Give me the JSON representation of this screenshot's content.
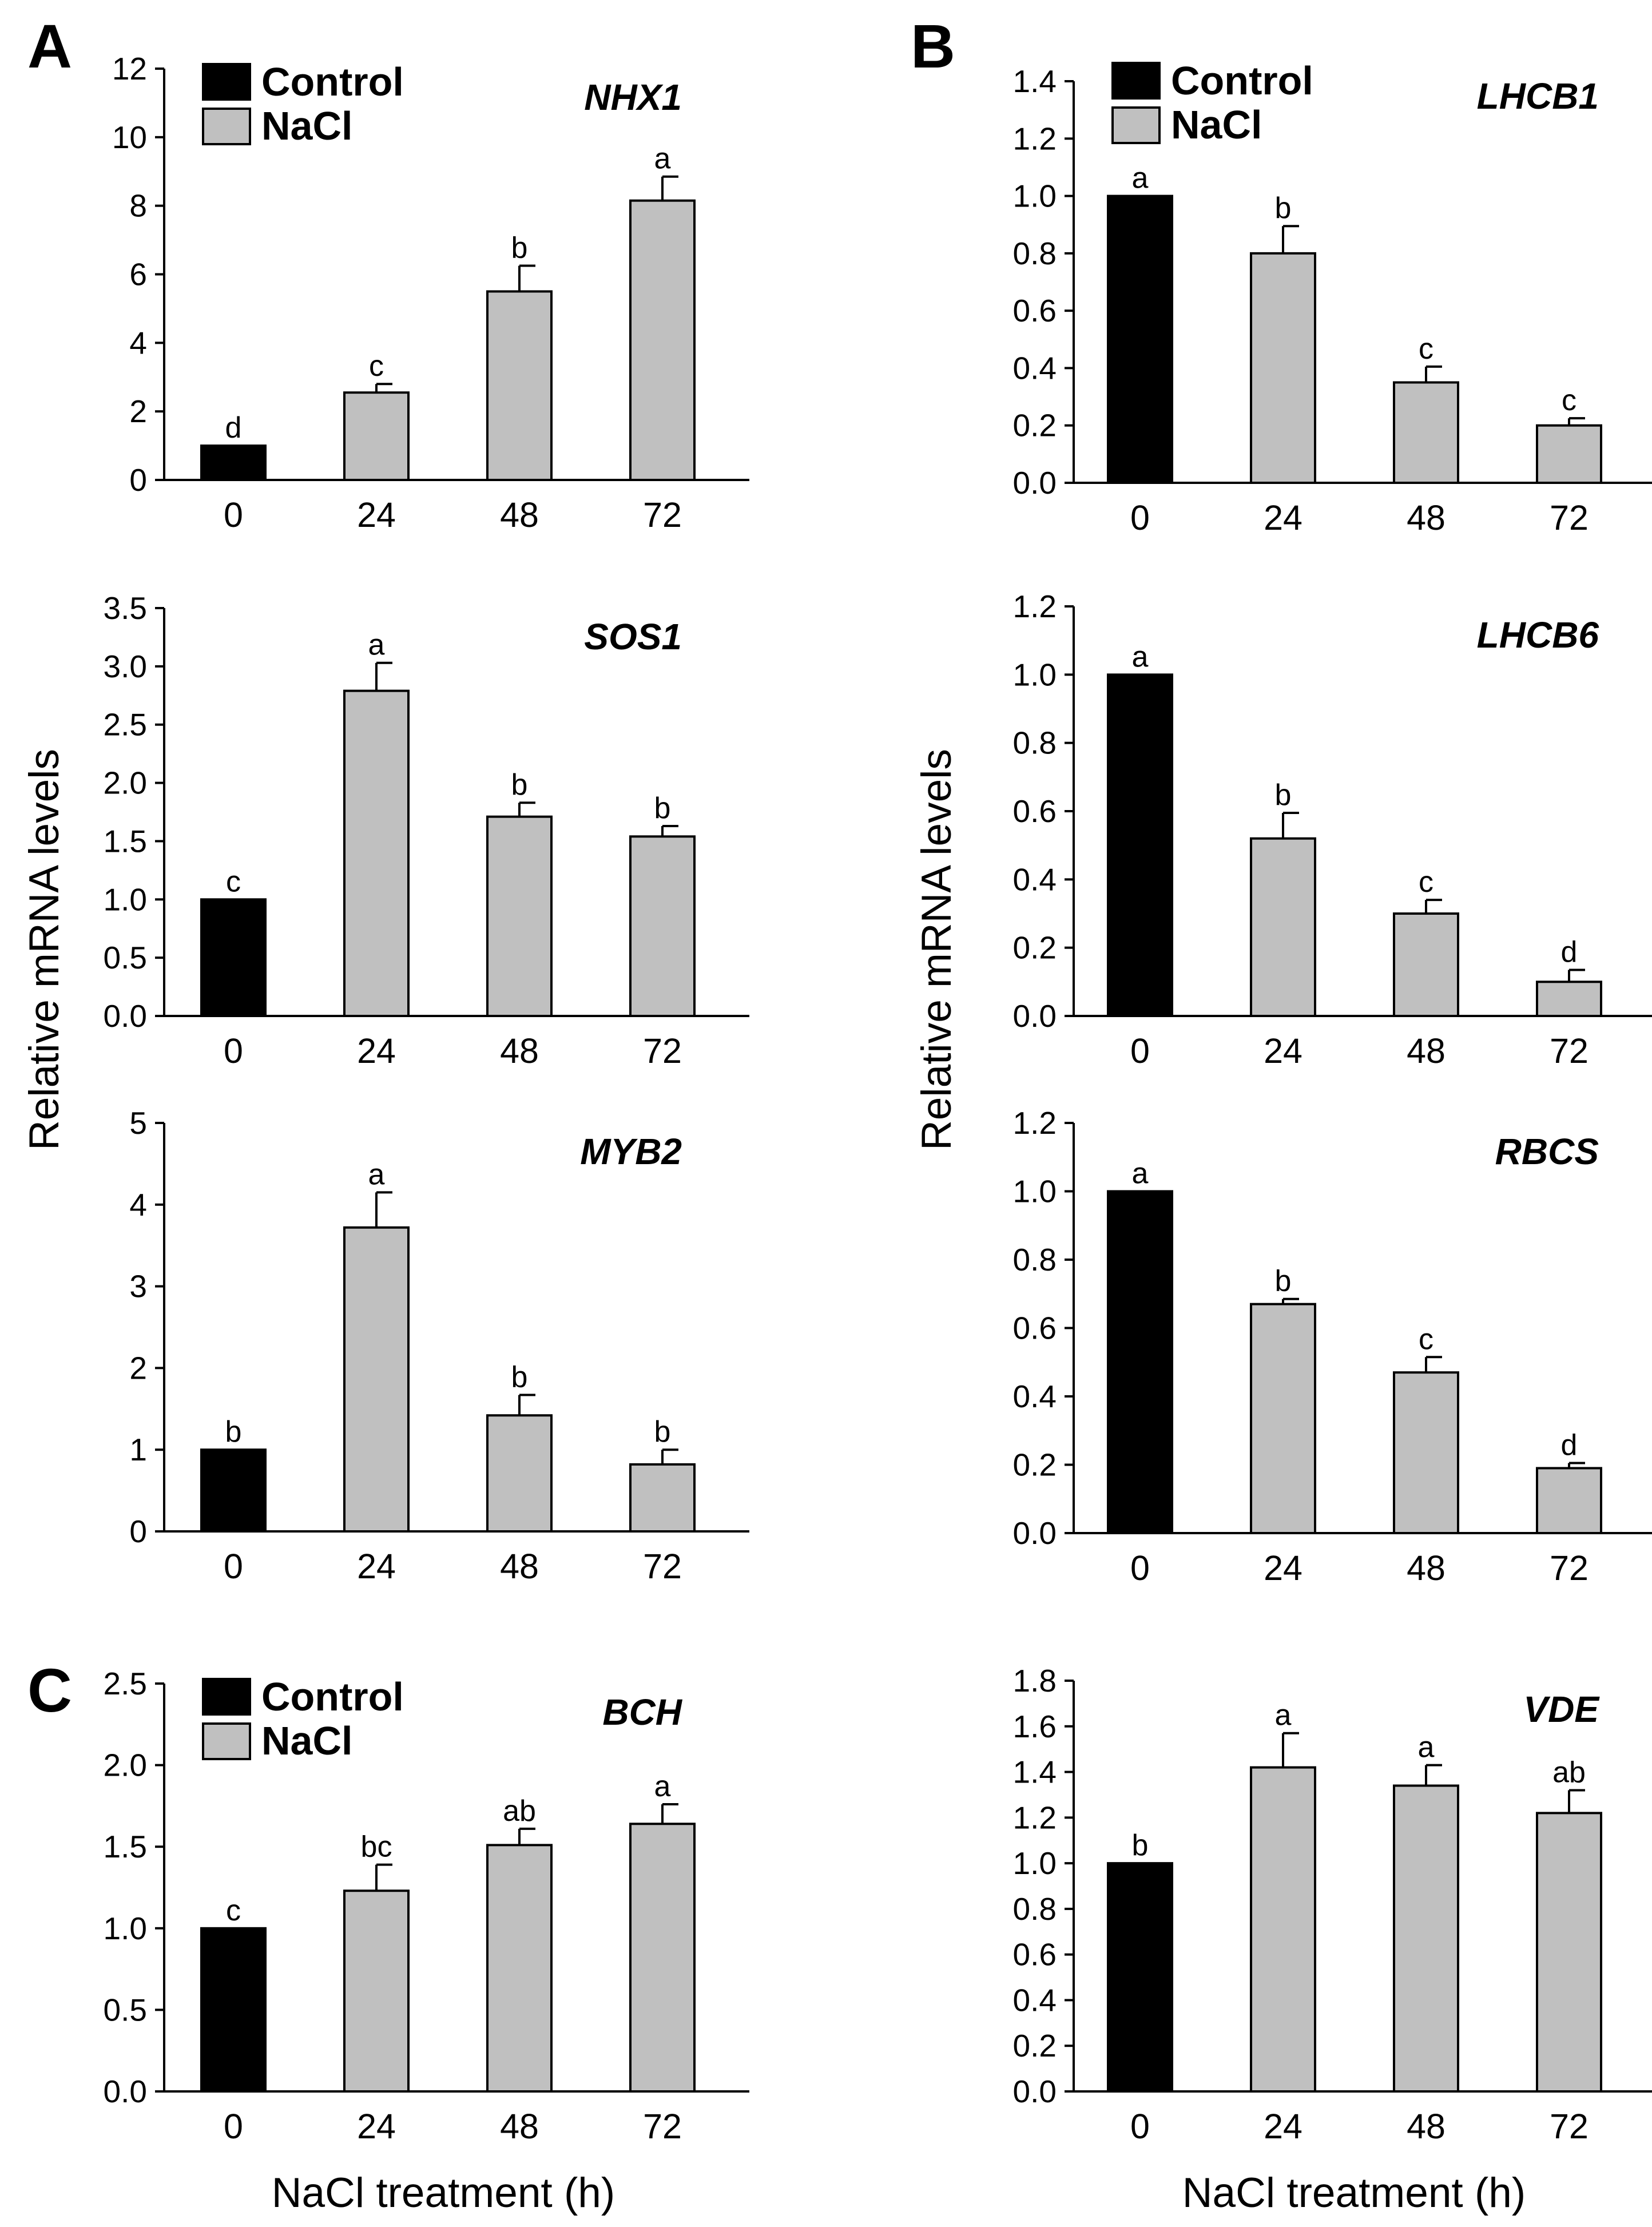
{
  "figure": {
    "panel_letters": [
      "A",
      "B",
      "C"
    ],
    "ylabel_left": "Relative mRNA levels",
    "ylabel_right": "Relative mRNA levels",
    "xlabel_left": "NaCl treatment (h)",
    "xlabel_right": "NaCl treatment (h)"
  },
  "legend": {
    "control_label": "Control",
    "nacl_label": "NaCl",
    "control_color": "#000000",
    "nacl_color": "#c0c0c0"
  },
  "chart_data": [
    {
      "type": "bar",
      "title": "NHX1",
      "panel": "A",
      "categories": [
        "0",
        "24",
        "48",
        "72"
      ],
      "values": [
        1.0,
        2.55,
        5.5,
        8.15
      ],
      "errors": [
        0,
        0.25,
        0.75,
        0.7
      ],
      "letters": [
        "d",
        "c",
        "b",
        "a"
      ],
      "groups": [
        "Control",
        "NaCl",
        "NaCl",
        "NaCl"
      ],
      "ylim": [
        0,
        12
      ],
      "yticks": [
        "0",
        "2",
        "4",
        "6",
        "8",
        "10",
        "12"
      ],
      "legend": true
    },
    {
      "type": "bar",
      "title": "LHCB1",
      "panel": "B",
      "categories": [
        "0",
        "24",
        "48",
        "72"
      ],
      "values": [
        1.0,
        0.8,
        0.35,
        0.2
      ],
      "errors": [
        0,
        0.095,
        0.055,
        0.025
      ],
      "letters": [
        "a",
        "b",
        "c",
        "c"
      ],
      "groups": [
        "Control",
        "NaCl",
        "NaCl",
        "NaCl"
      ],
      "ylim": [
        0,
        1.4
      ],
      "yticks": [
        "0.0",
        "0.2",
        "0.4",
        "0.6",
        "0.8",
        "1.0",
        "1.2",
        "1.4"
      ],
      "legend": true
    },
    {
      "type": "bar",
      "title": "SOS1",
      "categories": [
        "0",
        "24",
        "48",
        "72"
      ],
      "values": [
        1.0,
        2.79,
        1.71,
        1.54
      ],
      "errors": [
        0,
        0.24,
        0.12,
        0.09
      ],
      "letters": [
        "c",
        "a",
        "b",
        "b"
      ],
      "groups": [
        "Control",
        "NaCl",
        "NaCl",
        "NaCl"
      ],
      "ylim": [
        0,
        3.5
      ],
      "yticks": [
        "0.0",
        "0.5",
        "1.0",
        "1.5",
        "2.0",
        "2.5",
        "3.0",
        "3.5"
      ],
      "legend": false
    },
    {
      "type": "bar",
      "title": "LHCB6",
      "categories": [
        "0",
        "24",
        "48",
        "72"
      ],
      "values": [
        1.0,
        0.52,
        0.3,
        0.1
      ],
      "errors": [
        0,
        0.075,
        0.04,
        0.035
      ],
      "letters": [
        "a",
        "b",
        "c",
        "d"
      ],
      "groups": [
        "Control",
        "NaCl",
        "NaCl",
        "NaCl"
      ],
      "ylim": [
        0,
        1.2
      ],
      "yticks": [
        "0.0",
        "0.2",
        "0.4",
        "0.6",
        "0.8",
        "1.0",
        "1.2"
      ],
      "legend": false
    },
    {
      "type": "bar",
      "title": "MYB2",
      "categories": [
        "0",
        "24",
        "48",
        "72"
      ],
      "values": [
        1.0,
        3.72,
        1.42,
        0.82
      ],
      "errors": [
        0,
        0.43,
        0.25,
        0.18
      ],
      "letters": [
        "b",
        "a",
        "b",
        "b"
      ],
      "groups": [
        "Control",
        "NaCl",
        "NaCl",
        "NaCl"
      ],
      "ylim": [
        0,
        5
      ],
      "yticks": [
        "0",
        "1",
        "2",
        "3",
        "4",
        "5"
      ],
      "legend": false
    },
    {
      "type": "bar",
      "title": "RBCS",
      "categories": [
        "0",
        "24",
        "48",
        "72"
      ],
      "values": [
        1.0,
        0.67,
        0.47,
        0.19
      ],
      "errors": [
        0,
        0.015,
        0.045,
        0.015
      ],
      "letters": [
        "a",
        "b",
        "c",
        "d"
      ],
      "groups": [
        "Control",
        "NaCl",
        "NaCl",
        "NaCl"
      ],
      "ylim": [
        0,
        1.2
      ],
      "yticks": [
        "0.0",
        "0.2",
        "0.4",
        "0.6",
        "0.8",
        "1.0",
        "1.2"
      ],
      "legend": false
    },
    {
      "type": "bar",
      "title": "BCH",
      "panel": "C",
      "categories": [
        "0",
        "24",
        "48",
        "72"
      ],
      "values": [
        1.0,
        1.23,
        1.51,
        1.64
      ],
      "errors": [
        0,
        0.16,
        0.1,
        0.12
      ],
      "letters": [
        "c",
        "bc",
        "ab",
        "a"
      ],
      "groups": [
        "Control",
        "NaCl",
        "NaCl",
        "NaCl"
      ],
      "ylim": [
        0,
        2.5
      ],
      "yticks": [
        "0.0",
        "0.5",
        "1.0",
        "1.5",
        "2.0",
        "2.5"
      ],
      "legend": true
    },
    {
      "type": "bar",
      "title": "VDE",
      "categories": [
        "0",
        "24",
        "48",
        "72"
      ],
      "values": [
        1.0,
        1.42,
        1.34,
        1.22
      ],
      "errors": [
        0,
        0.15,
        0.09,
        0.1
      ],
      "letters": [
        "b",
        "a",
        "a",
        "ab"
      ],
      "groups": [
        "Control",
        "NaCl",
        "NaCl",
        "NaCl"
      ],
      "ylim": [
        0,
        1.8
      ],
      "yticks": [
        "0.0",
        "0.2",
        "0.4",
        "0.6",
        "0.8",
        "1.0",
        "1.2",
        "1.4",
        "1.6",
        "1.8"
      ],
      "legend": false
    }
  ]
}
